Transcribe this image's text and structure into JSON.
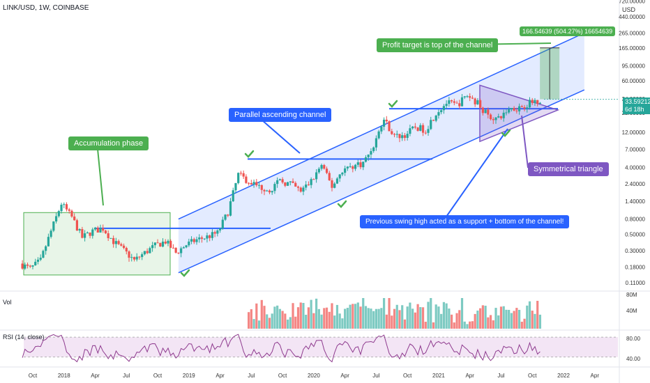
{
  "header": {
    "symbol": "LINK/USD, 1W, COINBASE"
  },
  "price_axis": {
    "unit": "USD",
    "ticks": [
      "720.00000",
      "440.00000",
      "265.00000",
      "165.00000",
      "95.00000",
      "60.00000",
      "34.00000",
      "22.00000",
      "12.00000",
      "7.00000",
      "4.00000",
      "2.40000",
      "1.40000",
      "0.80000",
      "0.50000",
      "0.30000",
      "0.18000",
      "0.11000"
    ]
  },
  "time_axis": {
    "ticks": [
      "Oct",
      "2018",
      "Apr",
      "Jul",
      "Oct",
      "2019",
      "Apr",
      "Jul",
      "Oct",
      "2020",
      "Apr",
      "Jul",
      "Oct",
      "2021",
      "Apr",
      "Jul",
      "Oct",
      "2022",
      "Apr"
    ]
  },
  "last_price": {
    "value": "33.59212",
    "countdown": "6d 18h"
  },
  "annotations": {
    "accumulation": "Accumulation phase",
    "channel": "Parallel ascending channel",
    "profit": "Profit target is top of the channel",
    "measure": "166.54639 (504.27%) 16654639",
    "triangle": "Symmetrical triangle",
    "support": "Previous swing high acted as a support + bottom of the channel!"
  },
  "volume_pane": {
    "label": "Vol",
    "ticks": [
      "80M",
      "40M"
    ]
  },
  "rsi_pane": {
    "label": "RSI (14, close)",
    "ticks": [
      "80.00",
      "40.00"
    ]
  },
  "colors": {
    "up": "#26a69a",
    "down": "#ef5350",
    "channel": "#2962ff",
    "accumulation": "#4caf50",
    "triangle": "#7e57c2",
    "rsi": "#8e3a8e",
    "rsi_band": "#f3e5f5",
    "annotation_blue": "#2962ff",
    "annotation_green": "#4caf50",
    "annotation_purple": "#7e57c2"
  },
  "chart_data": {
    "type": "candlestick",
    "title": "LINK/USD, 1W, COINBASE",
    "y_scale": "log",
    "ylim": [
      0.11,
      720
    ],
    "xlim": [
      "2017-09",
      "2022-05"
    ],
    "weekly_close_approx": [
      {
        "date": "2017-09",
        "close": 0.2
      },
      {
        "date": "2017-10",
        "close": 0.17
      },
      {
        "date": "2017-11",
        "close": 0.22
      },
      {
        "date": "2017-12",
        "close": 0.55
      },
      {
        "date": "2018-01",
        "close": 1.3
      },
      {
        "date": "2018-02",
        "close": 0.85
      },
      {
        "date": "2018-03",
        "close": 0.45
      },
      {
        "date": "2018-04",
        "close": 0.55
      },
      {
        "date": "2018-05",
        "close": 0.6
      },
      {
        "date": "2018-06",
        "close": 0.4
      },
      {
        "date": "2018-07",
        "close": 0.3
      },
      {
        "date": "2018-08",
        "close": 0.22
      },
      {
        "date": "2018-09",
        "close": 0.28
      },
      {
        "date": "2018-10",
        "close": 0.35
      },
      {
        "date": "2018-11",
        "close": 0.4
      },
      {
        "date": "2018-12",
        "close": 0.28
      },
      {
        "date": "2019-01",
        "close": 0.36
      },
      {
        "date": "2019-02",
        "close": 0.42
      },
      {
        "date": "2019-03",
        "close": 0.46
      },
      {
        "date": "2019-04",
        "close": 0.52
      },
      {
        "date": "2019-05",
        "close": 1.0
      },
      {
        "date": "2019-06",
        "close": 3.2
      },
      {
        "date": "2019-07",
        "close": 2.6
      },
      {
        "date": "2019-08",
        "close": 2.2
      },
      {
        "date": "2019-09",
        "close": 2.0
      },
      {
        "date": "2019-10",
        "close": 2.6
      },
      {
        "date": "2019-11",
        "close": 2.4
      },
      {
        "date": "2019-12",
        "close": 1.9
      },
      {
        "date": "2020-01",
        "close": 2.6
      },
      {
        "date": "2020-02",
        "close": 4.3
      },
      {
        "date": "2020-03",
        "close": 2.2
      },
      {
        "date": "2020-04",
        "close": 3.7
      },
      {
        "date": "2020-05",
        "close": 4.2
      },
      {
        "date": "2020-06",
        "close": 4.6
      },
      {
        "date": "2020-07",
        "close": 8.0
      },
      {
        "date": "2020-08",
        "close": 18.0
      },
      {
        "date": "2020-09",
        "close": 10.5
      },
      {
        "date": "2020-10",
        "close": 11.0
      },
      {
        "date": "2020-11",
        "close": 14.0
      },
      {
        "date": "2020-12",
        "close": 13.0
      },
      {
        "date": "2021-01",
        "close": 22.0
      },
      {
        "date": "2021-02",
        "close": 30.0
      },
      {
        "date": "2021-03",
        "close": 28.0
      },
      {
        "date": "2021-04",
        "close": 38.0
      },
      {
        "date": "2021-05",
        "close": 30.0
      },
      {
        "date": "2021-06",
        "close": 20.0
      },
      {
        "date": "2021-07",
        "close": 18.0
      },
      {
        "date": "2021-08",
        "close": 25.0
      },
      {
        "date": "2021-09",
        "close": 26.0
      },
      {
        "date": "2021-10",
        "close": 30.0
      },
      {
        "date": "2021-11",
        "close": 33.59
      }
    ],
    "channel": {
      "upper": [
        {
          "date": "2018-12",
          "price": 0.8
        },
        {
          "date": "2022-03",
          "price": 265
        }
      ],
      "lower": [
        {
          "date": "2018-12",
          "price": 0.15
        },
        {
          "date": "2022-03",
          "price": 45
        }
      ]
    },
    "measurement": {
      "start": "2021-11",
      "target": 166.54639,
      "change_pct": 504.27
    },
    "rsi_band": [
      40,
      80
    ]
  }
}
